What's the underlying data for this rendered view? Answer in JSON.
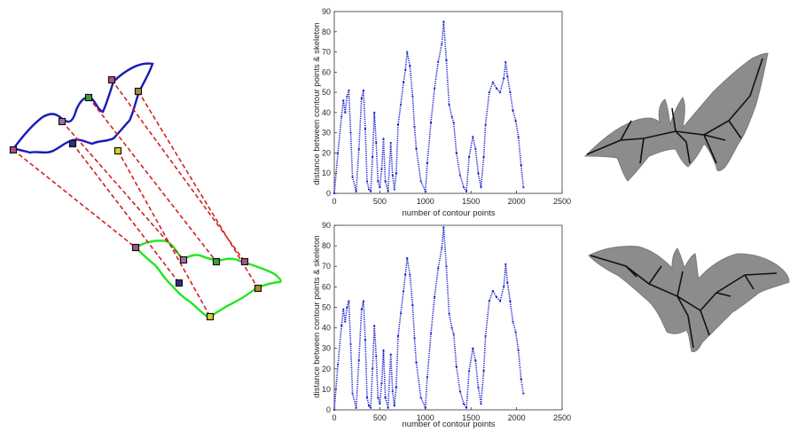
{
  "colors": {
    "series": "#1a22cc",
    "contour_top": "#1a1ab8",
    "contour_bottom": "#22e622",
    "match_line": "#d42020",
    "silhouette": "#8c8c8c",
    "skeleton": "#111111",
    "axis": "#333333"
  },
  "matching": {
    "marker_colors": [
      "#b0507a",
      "#a070a0",
      "#40a040",
      "#b05088",
      "#b08a30",
      "#303080",
      "#d8d030"
    ]
  },
  "chart_data": [
    {
      "type": "line",
      "title": "",
      "xlabel": "number of contour points",
      "ylabel": "distance between contour points & skeleton",
      "xlim": [
        0,
        2500
      ],
      "ylim": [
        0,
        90
      ],
      "xticks": [
        0,
        500,
        1000,
        1500,
        2000,
        2500
      ],
      "yticks": [
        0,
        10,
        20,
        30,
        40,
        50,
        60,
        70,
        80,
        90
      ],
      "grid": false,
      "series": [
        {
          "x": [
            0,
            40,
            80,
            100,
            120,
            140,
            160,
            180,
            200,
            240,
            270,
            300,
            320,
            340,
            360,
            380,
            400,
            420,
            440,
            460,
            480,
            500,
            520,
            540,
            560,
            590,
            620,
            640,
            660,
            680,
            700,
            730,
            760,
            780,
            800,
            830,
            860,
            880,
            900,
            950,
            1000,
            1020,
            1060,
            1100,
            1140,
            1180,
            1200,
            1230,
            1260,
            1290,
            1310,
            1340,
            1380,
            1420,
            1450,
            1480,
            1520,
            1550,
            1580,
            1610,
            1640,
            1660,
            1700,
            1740,
            1780,
            1820,
            1860,
            1880,
            1900,
            1930,
            1960,
            1990,
            2020,
            2050,
            2075
          ],
          "values": [
            0,
            20,
            38,
            46,
            40,
            48,
            51,
            30,
            8,
            1,
            22,
            47,
            51,
            32,
            6,
            2,
            1,
            18,
            40,
            25,
            6,
            3,
            12,
            27,
            6,
            1,
            25,
            9,
            2,
            10,
            34,
            44,
            55,
            61,
            70,
            63,
            48,
            33,
            22,
            6,
            1,
            15,
            35,
            52,
            65,
            74,
            85,
            66,
            44,
            38,
            35,
            20,
            9,
            3,
            1,
            18,
            28,
            22,
            10,
            3,
            18,
            34,
            50,
            55,
            52,
            50,
            57,
            65,
            58,
            50,
            41,
            36,
            28,
            14,
            3
          ]
        }
      ]
    },
    {
      "type": "line",
      "title": "",
      "xlabel": "number of contour points",
      "ylabel": "distance between contour points & skeleton",
      "xlim": [
        0,
        2500
      ],
      "ylim": [
        0,
        90
      ],
      "xticks": [
        0,
        500,
        1000,
        1500,
        2000,
        2500
      ],
      "yticks": [
        0,
        10,
        20,
        30,
        40,
        50,
        60,
        70,
        80,
        90
      ],
      "grid": false,
      "series": [
        {
          "x": [
            0,
            40,
            80,
            100,
            120,
            140,
            160,
            180,
            200,
            240,
            270,
            300,
            320,
            340,
            360,
            380,
            400,
            420,
            440,
            460,
            480,
            500,
            520,
            540,
            560,
            590,
            620,
            640,
            660,
            680,
            700,
            730,
            760,
            780,
            800,
            830,
            860,
            880,
            900,
            950,
            1000,
            1020,
            1060,
            1100,
            1140,
            1180,
            1200,
            1230,
            1260,
            1290,
            1310,
            1340,
            1380,
            1420,
            1450,
            1480,
            1520,
            1550,
            1580,
            1610,
            1640,
            1660,
            1700,
            1740,
            1780,
            1820,
            1860,
            1880,
            1900,
            1930,
            1960,
            1990,
            2020,
            2050,
            2075
          ],
          "values": [
            0,
            22,
            41,
            49,
            43,
            50,
            53,
            32,
            8,
            1,
            24,
            49,
            53,
            34,
            6,
            2,
            1,
            20,
            41,
            26,
            6,
            3,
            13,
            29,
            6,
            1,
            27,
            9,
            2,
            11,
            36,
            47,
            58,
            66,
            74,
            66,
            51,
            35,
            23,
            6,
            1,
            16,
            37,
            55,
            69,
            79,
            89,
            70,
            47,
            40,
            37,
            21,
            9,
            3,
            1,
            19,
            30,
            24,
            11,
            3,
            19,
            36,
            53,
            58,
            55,
            53,
            60,
            71,
            62,
            53,
            43,
            38,
            29,
            15,
            8
          ]
        }
      ]
    }
  ]
}
